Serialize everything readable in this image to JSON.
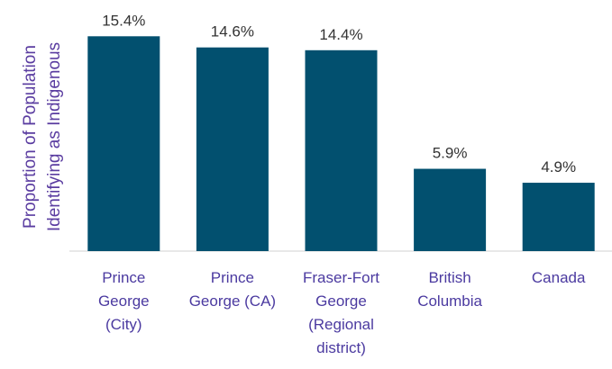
{
  "chart_data": {
    "type": "bar",
    "ylabel": "Proportion of Population Identifying as Indigenous",
    "categories": [
      "Prince George (City)",
      "Prince George (CA)",
      "Fraser-Fort George (Regional district)",
      "British Columbia",
      "Canada"
    ],
    "values": [
      15.4,
      14.6,
      14.4,
      5.9,
      4.9
    ],
    "value_labels": [
      "15.4%",
      "14.6%",
      "14.4%",
      "5.9%",
      "4.9%"
    ],
    "color": "#02506f",
    "ylim": [
      0,
      16
    ]
  }
}
